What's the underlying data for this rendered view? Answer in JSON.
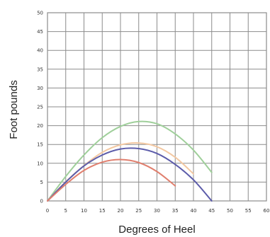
{
  "chart_data": {
    "type": "line",
    "title": "",
    "xlabel": "Degrees of Heel",
    "ylabel": "Foot pounds",
    "xlim": [
      0,
      60
    ],
    "ylim": [
      0,
      50
    ],
    "x_ticks": [
      "0",
      "5",
      "10",
      "15",
      "20",
      "25",
      "30",
      "35",
      "40",
      "45",
      "50",
      "55",
      "60"
    ],
    "y_ticks": [
      "0",
      "5",
      "10",
      "15",
      "20",
      "25",
      "30",
      "35",
      "40",
      "45",
      "50"
    ],
    "grid": true,
    "legend": "none",
    "series": [
      {
        "color": "#9fcf9a",
        "x": [
          0,
          5,
          10,
          15,
          20,
          25,
          30,
          35,
          40,
          45
        ],
        "y": [
          0,
          6.5,
          12.2,
          16.8,
          19.8,
          21.1,
          20.5,
          17.8,
          13.5,
          7.6
        ]
      },
      {
        "color": "#f3c8a2",
        "x": [
          0,
          5,
          10,
          15,
          20,
          25,
          30,
          35,
          40
        ],
        "y": [
          0,
          5.1,
          9.4,
          12.9,
          14.9,
          15.4,
          14.4,
          11.6,
          7.2
        ]
      },
      {
        "color": "#5c5caa",
        "x": [
          0,
          5,
          10,
          15,
          20,
          25,
          30,
          35,
          40,
          45
        ],
        "y": [
          0,
          5.0,
          9.3,
          12.2,
          13.8,
          13.9,
          12.6,
          9.7,
          5.6,
          0
        ]
      },
      {
        "color": "#e07f6e",
        "x": [
          0,
          5,
          10,
          15,
          20,
          25,
          30,
          35
        ],
        "y": [
          0,
          4.4,
          8.1,
          10.3,
          11.0,
          10.2,
          7.8,
          4.0
        ]
      }
    ]
  }
}
